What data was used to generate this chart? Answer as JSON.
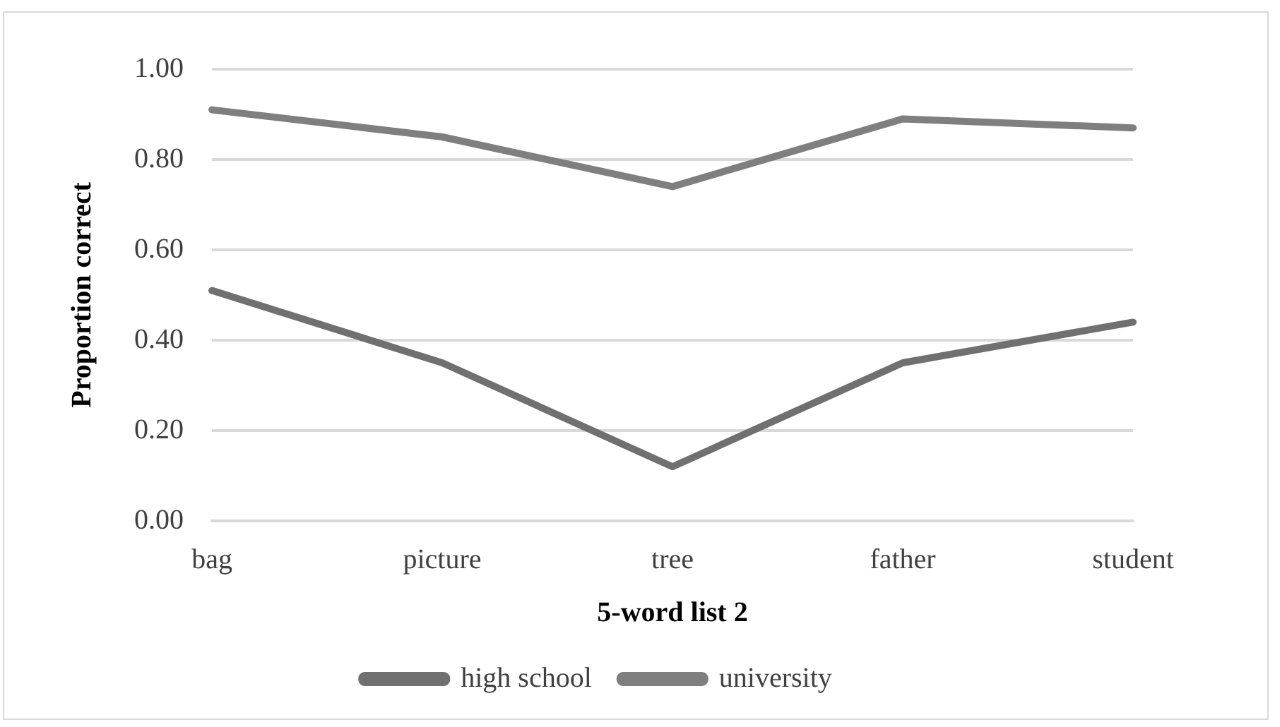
{
  "chart_data": {
    "type": "line",
    "xlabel": "5-word list 2",
    "ylabel": "Proportion correct",
    "categories": [
      "bag",
      "picture",
      "tree",
      "father",
      "student"
    ],
    "series": [
      {
        "name": "high school",
        "color": "#707070",
        "values": [
          0.51,
          0.35,
          0.12,
          0.35,
          0.44
        ]
      },
      {
        "name": "university",
        "color": "#7f7f7f",
        "values": [
          0.91,
          0.85,
          0.74,
          0.89,
          0.87
        ]
      }
    ],
    "ylim": [
      0,
      1
    ],
    "yticks": [
      {
        "value": 0,
        "label": "0.00"
      },
      {
        "value": 0.2,
        "label": "0.20"
      },
      {
        "value": 0.4,
        "label": "0.40"
      },
      {
        "value": 0.6,
        "label": "0.60"
      },
      {
        "value": 0.8,
        "label": "0.80"
      },
      {
        "value": 1,
        "label": "1.00"
      }
    ],
    "grid": "y",
    "legend": "bottom",
    "marker": "none",
    "line_style": "solid"
  }
}
